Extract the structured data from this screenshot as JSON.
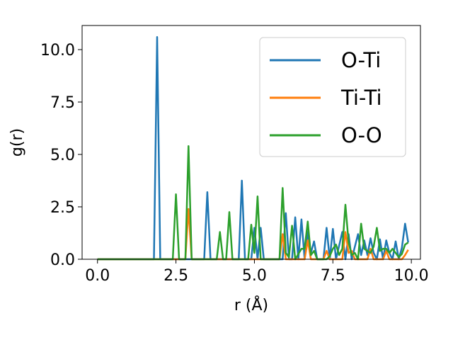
{
  "chart_data": {
    "type": "line",
    "title": "",
    "xlabel": "r (Å)",
    "ylabel": "g(r)",
    "xlim": [
      -0.49,
      10.29
    ],
    "ylim": [
      0,
      11.15
    ],
    "xticks": [
      0.0,
      2.5,
      5.0,
      7.5,
      10.0
    ],
    "xtick_labels": [
      "0.0",
      "2.5",
      "5.0",
      "7.5",
      "10.0"
    ],
    "yticks": [
      0.0,
      2.5,
      5.0,
      7.5,
      10.0
    ],
    "ytick_labels": [
      "0.0",
      "2.5",
      "5.0",
      "7.5",
      "10.0"
    ],
    "grid": false,
    "legend_position": "top-right",
    "series": [
      {
        "name": "O-Ti",
        "color": "#1f77b4",
        "points": [
          [
            0.0,
            0
          ],
          [
            1.8,
            0
          ],
          [
            1.9,
            10.6
          ],
          [
            2.0,
            0
          ],
          [
            3.4,
            0
          ],
          [
            3.5,
            3.2
          ],
          [
            3.6,
            0
          ],
          [
            4.5,
            0
          ],
          [
            4.6,
            3.75
          ],
          [
            4.7,
            0
          ],
          [
            4.9,
            0
          ],
          [
            5.0,
            1.5
          ],
          [
            5.1,
            0
          ],
          [
            5.2,
            1.5
          ],
          [
            5.3,
            0
          ],
          [
            5.9,
            0
          ],
          [
            6.0,
            2.2
          ],
          [
            6.1,
            0
          ],
          [
            6.2,
            0
          ],
          [
            6.3,
            2.0
          ],
          [
            6.4,
            0
          ],
          [
            6.5,
            1.9
          ],
          [
            6.6,
            0
          ],
          [
            6.7,
            1.3
          ],
          [
            6.8,
            0.3
          ],
          [
            6.9,
            0.85
          ],
          [
            7.0,
            0
          ],
          [
            7.2,
            0
          ],
          [
            7.3,
            1.5
          ],
          [
            7.4,
            0
          ],
          [
            7.5,
            1.45
          ],
          [
            7.6,
            0
          ],
          [
            7.8,
            1.3
          ],
          [
            7.9,
            0
          ],
          [
            8.0,
            1.2
          ],
          [
            8.1,
            0
          ],
          [
            8.3,
            1.2
          ],
          [
            8.4,
            0.2
          ],
          [
            8.5,
            0.9
          ],
          [
            8.6,
            0.2
          ],
          [
            8.7,
            1.0
          ],
          [
            8.8,
            0.3
          ],
          [
            8.9,
            0
          ],
          [
            9.0,
            0.95
          ],
          [
            9.1,
            0
          ],
          [
            9.2,
            0.9
          ],
          [
            9.3,
            0.3
          ],
          [
            9.4,
            0
          ],
          [
            9.5,
            0.85
          ],
          [
            9.6,
            0
          ],
          [
            9.7,
            0.55
          ],
          [
            9.8,
            1.7
          ],
          [
            9.9,
            0.8
          ]
        ]
      },
      {
        "name": "Ti-Ti",
        "color": "#ff7f0e",
        "points": [
          [
            0.0,
            0
          ],
          [
            2.8,
            0
          ],
          [
            2.9,
            2.4
          ],
          [
            3.0,
            0
          ],
          [
            5.8,
            0
          ],
          [
            5.9,
            1.2
          ],
          [
            6.0,
            0
          ],
          [
            6.6,
            0
          ],
          [
            6.7,
            0.9
          ],
          [
            6.8,
            0
          ],
          [
            7.2,
            0
          ],
          [
            7.3,
            0.4
          ],
          [
            7.4,
            0
          ],
          [
            7.8,
            0
          ],
          [
            7.9,
            1.3
          ],
          [
            8.0,
            0.3
          ],
          [
            8.1,
            0.4
          ],
          [
            8.2,
            0
          ],
          [
            8.6,
            0
          ],
          [
            8.7,
            0.5
          ],
          [
            8.8,
            0
          ],
          [
            9.1,
            0
          ],
          [
            9.2,
            0.4
          ],
          [
            9.3,
            0
          ],
          [
            9.7,
            0
          ],
          [
            9.8,
            0.2
          ],
          [
            9.9,
            0.45
          ]
        ]
      },
      {
        "name": "O-O",
        "color": "#2ca02c",
        "points": [
          [
            0.0,
            0
          ],
          [
            2.4,
            0
          ],
          [
            2.5,
            3.1
          ],
          [
            2.6,
            0
          ],
          [
            2.8,
            0
          ],
          [
            2.9,
            5.4
          ],
          [
            3.0,
            0
          ],
          [
            3.8,
            0
          ],
          [
            3.9,
            1.3
          ],
          [
            4.0,
            0
          ],
          [
            4.1,
            0
          ],
          [
            4.2,
            2.25
          ],
          [
            4.3,
            0
          ],
          [
            4.8,
            0
          ],
          [
            4.9,
            1.65
          ],
          [
            5.0,
            0.3
          ],
          [
            5.1,
            3.0
          ],
          [
            5.2,
            0
          ],
          [
            5.8,
            0
          ],
          [
            5.9,
            3.4
          ],
          [
            6.0,
            0.3
          ],
          [
            6.1,
            0.1
          ],
          [
            6.2,
            1.6
          ],
          [
            6.3,
            0
          ],
          [
            6.5,
            0.5
          ],
          [
            6.6,
            0.5
          ],
          [
            6.7,
            1.8
          ],
          [
            6.8,
            0.2
          ],
          [
            6.9,
            0.4
          ],
          [
            7.0,
            0
          ],
          [
            7.3,
            0
          ],
          [
            7.4,
            0.15
          ],
          [
            7.5,
            0.5
          ],
          [
            7.6,
            0.7
          ],
          [
            7.7,
            0.2
          ],
          [
            7.8,
            0.5
          ],
          [
            7.9,
            2.6
          ],
          [
            8.0,
            0.8
          ],
          [
            8.1,
            0.2
          ],
          [
            8.2,
            0.3
          ],
          [
            8.3,
            0
          ],
          [
            8.4,
            1.7
          ],
          [
            8.5,
            0.5
          ],
          [
            8.6,
            0.4
          ],
          [
            8.7,
            0.3
          ],
          [
            8.8,
            0.6
          ],
          [
            8.9,
            1.5
          ],
          [
            9.0,
            0.4
          ],
          [
            9.1,
            0.5
          ],
          [
            9.2,
            0.5
          ],
          [
            9.3,
            0.3
          ],
          [
            9.4,
            0.5
          ],
          [
            9.5,
            0.3
          ],
          [
            9.6,
            0.1
          ],
          [
            9.7,
            0.25
          ],
          [
            9.8,
            0.7
          ],
          [
            9.9,
            0.8
          ]
        ]
      }
    ]
  }
}
